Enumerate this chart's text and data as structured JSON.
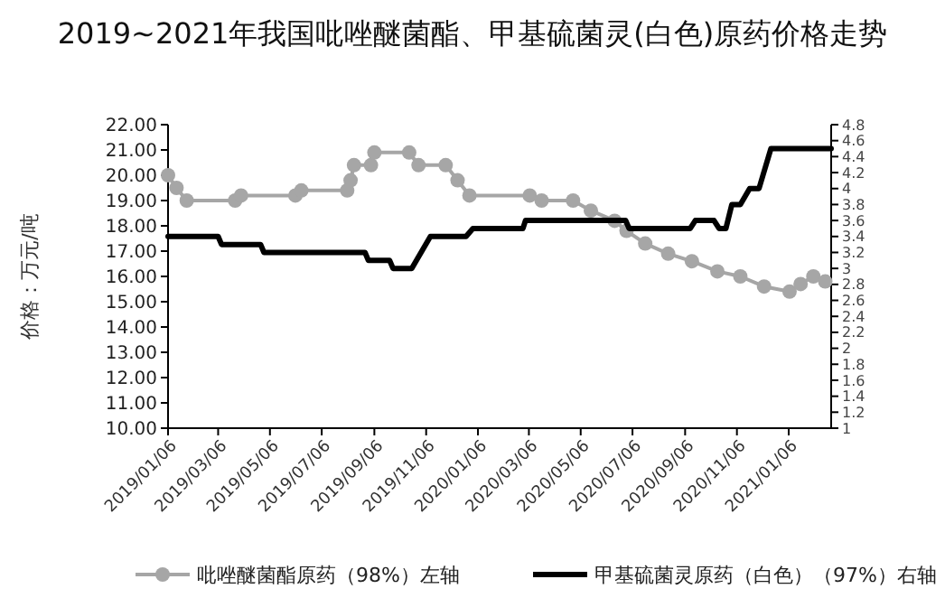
{
  "chart_data": {
    "type": "line",
    "title": "2019~2021年我国吡唑醚菌酯、甲基硫菌灵(白色)原药价格走势",
    "ylabel": "价格：万元/吨",
    "xlim": [
      "2019-01-06",
      "2021-02-25"
    ],
    "xticks": [
      {
        "value": "2019-01-06",
        "label": "2019/01/06"
      },
      {
        "value": "2019-03-06",
        "label": "2019/03/06"
      },
      {
        "value": "2019-05-06",
        "label": "2019/05/06"
      },
      {
        "value": "2019-07-06",
        "label": "2019/07/06"
      },
      {
        "value": "2019-09-06",
        "label": "2019/09/06"
      },
      {
        "value": "2019-11-06",
        "label": "2019/11/06"
      },
      {
        "value": "2020-01-06",
        "label": "2020/01/06"
      },
      {
        "value": "2020-03-06",
        "label": "2020/03/06"
      },
      {
        "value": "2020-05-06",
        "label": "2020/05/06"
      },
      {
        "value": "2020-07-06",
        "label": "2020/07/06"
      },
      {
        "value": "2020-09-06",
        "label": "2020/09/06"
      },
      {
        "value": "2020-11-06",
        "label": "2020/11/06"
      },
      {
        "value": "2021-01-06",
        "label": "2021/01/06"
      }
    ],
    "ylim": [
      10,
      22
    ],
    "yticks": [
      {
        "value": 10,
        "label": "10.00"
      },
      {
        "value": 11,
        "label": "11.00"
      },
      {
        "value": 12,
        "label": "12.00"
      },
      {
        "value": 13,
        "label": "13.00"
      },
      {
        "value": 14,
        "label": "14.00"
      },
      {
        "value": 15,
        "label": "15.00"
      },
      {
        "value": 16,
        "label": "16.00"
      },
      {
        "value": 17,
        "label": "17.00"
      },
      {
        "value": 18,
        "label": "18.00"
      },
      {
        "value": 19,
        "label": "19.00"
      },
      {
        "value": 20,
        "label": "20.00"
      },
      {
        "value": 21,
        "label": "21.00"
      },
      {
        "value": 22,
        "label": "22.00"
      }
    ],
    "y2lim": [
      1,
      4.8
    ],
    "y2ticks": [
      1,
      1.2,
      1.4,
      1.6,
      1.8,
      2,
      2.2,
      2.4,
      2.6,
      2.8,
      3,
      3.2,
      3.4,
      3.6,
      3.8,
      4,
      4.2,
      4.4,
      4.6,
      4.8
    ],
    "grid": false,
    "legend": "bottom",
    "series": [
      {
        "name": "吡唑醚菌酯原药（98%）左轴",
        "color": "#a6a6a6",
        "marker": "circle",
        "x": [
          "2019-01-06",
          "2019-01-16",
          "2019-01-28",
          "2019-03-26",
          "2019-04-02",
          "2019-06-05",
          "2019-06-12",
          "2019-08-05",
          "2019-08-09",
          "2019-08-13",
          "2019-09-02",
          "2019-09-06",
          "2019-10-17",
          "2019-10-28",
          "2019-11-29",
          "2019-12-13",
          "2019-12-27",
          "2020-03-07",
          "2020-03-21",
          "2020-04-27",
          "2020-05-18",
          "2020-06-15",
          "2020-06-29",
          "2020-07-21",
          "2020-08-17",
          "2020-09-14",
          "2020-10-14",
          "2020-11-10",
          "2020-12-08",
          "2021-01-07",
          "2021-01-20",
          "2021-02-04",
          "2021-02-18"
        ],
        "values": [
          20.0,
          19.5,
          19.0,
          19.0,
          19.2,
          19.2,
          19.4,
          19.4,
          19.8,
          20.4,
          20.4,
          20.9,
          20.9,
          20.4,
          20.4,
          19.8,
          19.2,
          19.2,
          19.0,
          19.0,
          18.6,
          18.2,
          17.8,
          17.3,
          16.9,
          16.6,
          16.2,
          16.0,
          15.6,
          15.4,
          15.7,
          16.0,
          15.8
        ]
      },
      {
        "name": "甲基硫菌灵原药（白色）（97%）右轴",
        "color": "#000000",
        "marker": "none",
        "axis": "y2",
        "x": [
          "2019-01-06",
          "2019-03-06",
          "2019-03-10",
          "2019-04-25",
          "2019-04-29",
          "2019-08-26",
          "2019-08-30",
          "2019-09-24",
          "2019-09-28",
          "2019-10-20",
          "2019-11-11",
          "2019-12-23",
          "2019-12-31",
          "2020-02-28",
          "2020-03-02",
          "2020-06-28",
          "2020-07-02",
          "2020-09-12",
          "2020-09-18",
          "2020-10-10",
          "2020-10-16",
          "2020-10-24",
          "2020-10-31",
          "2020-11-10",
          "2020-11-21",
          "2020-12-02",
          "2020-12-16",
          "2021-02-25"
        ],
        "values": [
          3.4,
          3.4,
          3.3,
          3.3,
          3.2,
          3.2,
          3.1,
          3.1,
          3.0,
          3.0,
          3.4,
          3.4,
          3.5,
          3.5,
          3.6,
          3.6,
          3.5,
          3.5,
          3.6,
          3.6,
          3.5,
          3.5,
          3.8,
          3.8,
          4.0,
          4.0,
          4.5,
          4.5
        ]
      }
    ]
  }
}
